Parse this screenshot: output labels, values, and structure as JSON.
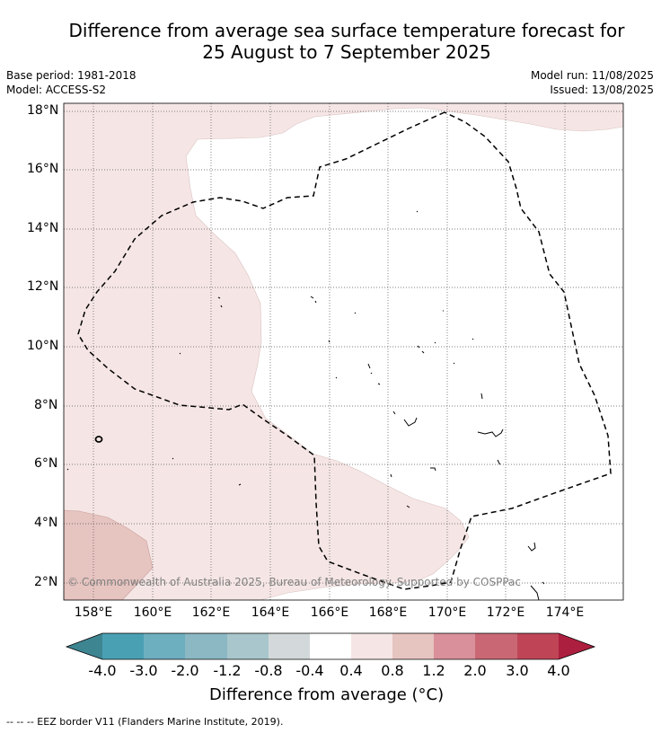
{
  "title_line1": "Difference from average sea surface temperature forecast for",
  "title_line2": "25 August to 7 September 2025",
  "meta": {
    "base_period": "Base period: 1981-2018",
    "model": "Model: ACCESS-S2",
    "model_run": "Model run: 11/08/2025",
    "issued": "Issued: 13/08/2025"
  },
  "map": {
    "lat_labels": [
      "18°N",
      "16°N",
      "14°N",
      "12°N",
      "10°N",
      "8°N",
      "6°N",
      "4°N",
      "2°N"
    ],
    "lon_labels": [
      "158°E",
      "160°E",
      "162°E",
      "164°E",
      "166°E",
      "168°E",
      "170°E",
      "172°E",
      "174°E"
    ],
    "copyright": "© Commonwealth of Australia 2025, Bureau of Meteorology. Supported by COSPPac"
  },
  "colorbar": {
    "title": "Difference from average (°C)",
    "ticks": [
      "-4.0",
      "-3.0",
      "-2.0",
      "-1.2",
      "-0.8",
      "-0.4",
      "0.4",
      "0.8",
      "1.2",
      "2.0",
      "3.0",
      "4.0"
    ],
    "colors": [
      "#3e8592",
      "#4aa0b3",
      "#6eafbf",
      "#8cb8c4",
      "#a8c6cb",
      "#d3d9da",
      "#ffffff",
      "#f5e6e5",
      "#e6c4c0",
      "#d9909a",
      "#c96874",
      "#bf4556",
      "#ad1f3f"
    ]
  },
  "footer": "-- -- -- EEZ border V11 (Flanders Marine Institute, 2019)."
}
